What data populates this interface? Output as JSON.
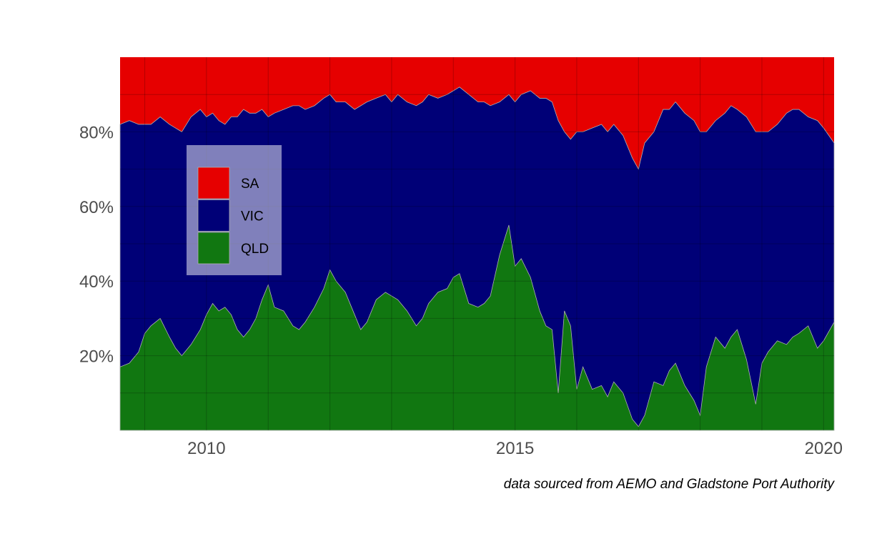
{
  "chart_data": {
    "type": "area",
    "stacked": true,
    "normalized": true,
    "caption": "data sourced from AEMO and Gladstone Port Authority",
    "x_ticks": [
      2010,
      2015,
      2020
    ],
    "x_tick_labels": [
      "2010",
      "2015",
      "2020"
    ],
    "y_ticks": [
      20,
      40,
      60,
      80
    ],
    "y_tick_labels": [
      "20%",
      "40%",
      "60%",
      "80%"
    ],
    "xlim": [
      2008.6,
      2020.17
    ],
    "ylim": [
      0,
      100
    ],
    "grid": true,
    "legend_position": "upper-left",
    "x": [
      2008.6,
      2008.75,
      2008.9,
      2009.0,
      2009.1,
      2009.25,
      2009.4,
      2009.5,
      2009.6,
      2009.75,
      2009.9,
      2010.0,
      2010.1,
      2010.2,
      2010.3,
      2010.4,
      2010.5,
      2010.6,
      2010.7,
      2010.8,
      2010.9,
      2011.0,
      2011.1,
      2011.25,
      2011.4,
      2011.5,
      2011.6,
      2011.75,
      2011.9,
      2012.0,
      2012.1,
      2012.25,
      2012.4,
      2012.5,
      2012.6,
      2012.75,
      2012.9,
      2013.0,
      2013.1,
      2013.25,
      2013.4,
      2013.5,
      2013.6,
      2013.75,
      2013.9,
      2014.0,
      2014.1,
      2014.25,
      2014.4,
      2014.5,
      2014.6,
      2014.75,
      2014.9,
      2015.0,
      2015.1,
      2015.25,
      2015.4,
      2015.5,
      2015.6,
      2015.7,
      2015.8,
      2015.9,
      2016.0,
      2016.1,
      2016.25,
      2016.4,
      2016.5,
      2016.6,
      2016.75,
      2016.9,
      2017.0,
      2017.1,
      2017.25,
      2017.4,
      2017.5,
      2017.6,
      2017.75,
      2017.9,
      2018.0,
      2018.1,
      2018.25,
      2018.4,
      2018.5,
      2018.6,
      2018.75,
      2018.9,
      2019.0,
      2019.1,
      2019.25,
      2019.4,
      2019.5,
      2019.6,
      2019.75,
      2019.9,
      2020.0,
      2020.17
    ],
    "series": [
      {
        "name": "QLD",
        "color": "#117711",
        "values": [
          17,
          18,
          21,
          26,
          28,
          30,
          25,
          22,
          20,
          23,
          27,
          31,
          34,
          32,
          33,
          31,
          27,
          25,
          27,
          30,
          35,
          39,
          33,
          32,
          28,
          27,
          29,
          33,
          38,
          43,
          40,
          37,
          31,
          27,
          29,
          35,
          37,
          36,
          35,
          32,
          28,
          30,
          34,
          37,
          38,
          41,
          42,
          34,
          33,
          34,
          36,
          47,
          55,
          44,
          46,
          41,
          32,
          28,
          27,
          10,
          32,
          28,
          11,
          17,
          11,
          12,
          9,
          13,
          10,
          3,
          1,
          4,
          13,
          12,
          16,
          18,
          12,
          8,
          4,
          17,
          25,
          22,
          25,
          27,
          19,
          7,
          18,
          21,
          24,
          23,
          25,
          26,
          28,
          22,
          24,
          29
        ]
      },
      {
        "name": "VIC",
        "color": "#000077",
        "values": [
          82,
          83,
          82,
          82,
          82,
          84,
          82,
          81,
          80,
          84,
          86,
          84,
          85,
          83,
          82,
          84,
          84,
          86,
          85,
          85,
          86,
          84,
          85,
          86,
          87,
          87,
          86,
          87,
          89,
          90,
          88,
          88,
          86,
          87,
          88,
          89,
          90,
          88,
          90,
          88,
          87,
          88,
          90,
          89,
          90,
          91,
          92,
          90,
          88,
          88,
          87,
          88,
          90,
          88,
          90,
          91,
          89,
          89,
          88,
          83,
          80,
          78,
          80,
          80,
          81,
          82,
          80,
          82,
          79,
          73,
          70,
          77,
          80,
          86,
          86,
          88,
          85,
          83,
          80,
          80,
          83,
          85,
          87,
          86,
          84,
          80,
          80,
          80,
          82,
          85,
          86,
          86,
          84,
          83,
          81,
          77
        ]
      },
      {
        "name": "SA",
        "color": "#e60000",
        "values": [
          100,
          100,
          100,
          100,
          100,
          100,
          100,
          100,
          100,
          100,
          100,
          100,
          100,
          100,
          100,
          100,
          100,
          100,
          100,
          100,
          100,
          100,
          100,
          100,
          100,
          100,
          100,
          100,
          100,
          100,
          100,
          100,
          100,
          100,
          100,
          100,
          100,
          100,
          100,
          100,
          100,
          100,
          100,
          100,
          100,
          100,
          100,
          100,
          100,
          100,
          100,
          100,
          100,
          100,
          100,
          100,
          100,
          100,
          100,
          100,
          100,
          100,
          100,
          100,
          100,
          100,
          100,
          100,
          100,
          100,
          100,
          100,
          100,
          100,
          100,
          100,
          100,
          100,
          100,
          100,
          100,
          100,
          100,
          100,
          100,
          100,
          100,
          100,
          100,
          100,
          100,
          100,
          100,
          100,
          100,
          100
        ]
      }
    ],
    "series_note_cumulative_upper_bounds": true
  }
}
